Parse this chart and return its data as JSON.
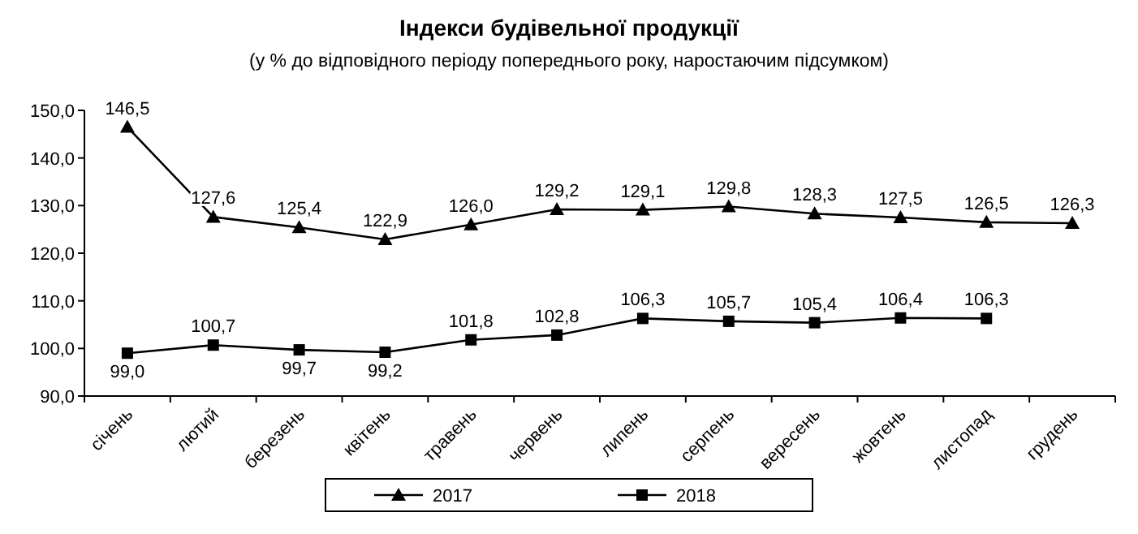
{
  "chart_data": {
    "type": "line",
    "title": "Індекси будівельної продукції",
    "subtitle": "(у % до відповідного  періоду попереднього року, наростаючим  підсумком)",
    "categories": [
      "січень",
      "лютий",
      "березень",
      "квітень",
      "травень",
      "червень",
      "липень",
      "серпень",
      "вересень",
      "жовтень",
      "листопад",
      "грудень"
    ],
    "series": [
      {
        "name": "2017",
        "color": "#000000",
        "marker": "triangle",
        "values": [
          146.5,
          127.6,
          125.4,
          122.9,
          126.0,
          129.2,
          129.1,
          129.8,
          128.3,
          127.5,
          126.5,
          126.3
        ],
        "value_labels": [
          "146,5",
          "127,6",
          "125,4",
          "122,9",
          "126,0",
          "129,2",
          "129,1",
          "129,8",
          "128,3",
          "127,5",
          "126,5",
          "126,3"
        ]
      },
      {
        "name": "2018",
        "color": "#000000",
        "marker": "square",
        "values": [
          99.0,
          100.7,
          99.7,
          99.2,
          101.8,
          102.8,
          106.3,
          105.7,
          105.4,
          106.4,
          106.3,
          null
        ],
        "value_labels": [
          "99,0",
          "100,7",
          "99,7",
          "99,2",
          "101,8",
          "102,8",
          "106,3",
          "105,7",
          "105,4",
          "106,4",
          "106,3",
          null
        ]
      }
    ],
    "ylim": [
      90,
      150
    ],
    "yticks": [
      {
        "value": 90,
        "label": "90,0"
      },
      {
        "value": 100,
        "label": "100,0"
      },
      {
        "value": 110,
        "label": "110,0"
      },
      {
        "value": 120,
        "label": "120,0"
      },
      {
        "value": 130,
        "label": "130,0"
      },
      {
        "value": 140,
        "label": "140,0"
      },
      {
        "value": 150,
        "label": "150,0"
      }
    ],
    "grid": false,
    "legend": "bottom",
    "line_style": "solid"
  }
}
